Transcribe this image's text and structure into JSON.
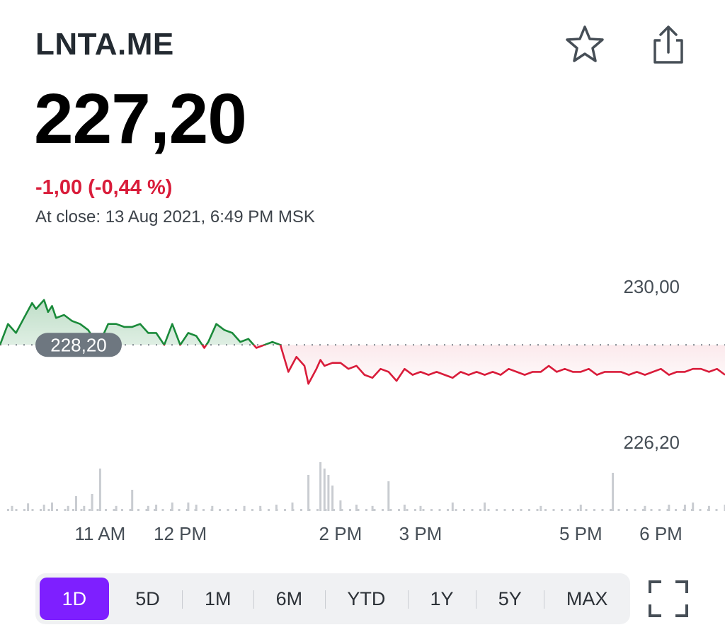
{
  "header": {
    "ticker": "LNTA.ME",
    "price": "227,20",
    "change": "-1,00 (-0,44 %)",
    "close_time": "At close: 13 Aug 2021, 6:49 PM MSK",
    "star_icon": "star-icon",
    "share_icon": "share-icon"
  },
  "colors": {
    "up": "#1a8a3a",
    "down": "#d91c3a",
    "accent": "#7e1fff",
    "volume": "#c9ccd1",
    "prev_close_badge": "#6e7780"
  },
  "chart_data": {
    "type": "line",
    "title": "",
    "y_labels": [
      "230,00",
      "226,20"
    ],
    "previous_close": 228.2,
    "previous_close_label": "228,20",
    "x_ticks": [
      "11 AM",
      "12 PM",
      "2 PM",
      "3 PM",
      "5 PM",
      "6 PM"
    ],
    "x_tick_hours": [
      11,
      12,
      14,
      15,
      17,
      18
    ],
    "x_range": [
      9.75,
      18.8
    ],
    "ylim": [
      225.3,
      230.5
    ],
    "series": [
      {
        "x": [
          9.75,
          9.85,
          9.95,
          10.05,
          10.15,
          10.2,
          10.3,
          10.35,
          10.4,
          10.45,
          10.55,
          10.65,
          10.75,
          10.85,
          10.95,
          11.05,
          11.1,
          11.2,
          11.3,
          11.4,
          11.5,
          11.6,
          11.7,
          11.8,
          11.9,
          12.0,
          12.1,
          12.2,
          12.3,
          12.35,
          12.45,
          12.55,
          12.65,
          12.75,
          12.85,
          12.95,
          13.05,
          13.15,
          13.25,
          13.35,
          13.45,
          13.55,
          13.6,
          13.7,
          13.75,
          13.8,
          13.9,
          14.0,
          14.1,
          14.2,
          14.3,
          14.4,
          14.5,
          14.6,
          14.7,
          14.8,
          14.9,
          15.0,
          15.1,
          15.2,
          15.3,
          15.4,
          15.5,
          15.6,
          15.7,
          15.8,
          15.9,
          16.0,
          16.1,
          16.2,
          16.3,
          16.4,
          16.5,
          16.6,
          16.7,
          16.8,
          16.9,
          17.0,
          17.1,
          17.2,
          17.3,
          17.4,
          17.5,
          17.6,
          17.7,
          17.8,
          17.9,
          18.0,
          18.1,
          18.2,
          18.3,
          18.4,
          18.5,
          18.6,
          18.7,
          18.8
        ],
        "y": [
          228.2,
          228.9,
          228.6,
          229.1,
          229.6,
          229.4,
          229.7,
          229.3,
          229.5,
          229.1,
          229.2,
          229.0,
          228.9,
          228.7,
          228.3,
          228.6,
          228.9,
          228.9,
          228.8,
          228.8,
          228.9,
          228.6,
          228.6,
          228.2,
          228.9,
          228.2,
          228.6,
          228.5,
          228.1,
          228.3,
          228.9,
          228.7,
          228.6,
          228.3,
          228.4,
          228.1,
          228.2,
          228.3,
          228.2,
          227.3,
          227.8,
          227.5,
          226.9,
          227.4,
          227.7,
          227.5,
          227.6,
          227.6,
          227.4,
          227.5,
          227.2,
          227.1,
          227.4,
          227.3,
          227.0,
          227.4,
          227.2,
          227.3,
          227.2,
          227.3,
          227.2,
          227.1,
          227.3,
          227.2,
          227.3,
          227.2,
          227.3,
          227.2,
          227.4,
          227.3,
          227.2,
          227.3,
          227.3,
          227.5,
          227.3,
          227.4,
          227.3,
          227.3,
          227.4,
          227.2,
          227.3,
          227.3,
          227.3,
          227.2,
          227.3,
          227.2,
          227.3,
          227.4,
          227.2,
          227.3,
          227.3,
          227.4,
          227.4,
          227.3,
          227.4,
          227.2
        ]
      }
    ],
    "volume": {
      "x": [
        9.9,
        10.1,
        10.3,
        10.4,
        10.6,
        10.7,
        10.8,
        10.9,
        11.0,
        11.2,
        11.4,
        11.6,
        11.7,
        11.9,
        12.1,
        12.2,
        12.4,
        12.8,
        13.0,
        13.2,
        13.4,
        13.6,
        13.75,
        13.8,
        13.85,
        13.9,
        14.0,
        14.2,
        14.4,
        14.6,
        14.8,
        15.0,
        15.4,
        15.8,
        16.5,
        17.0,
        17.4,
        17.8,
        18.1,
        18.3,
        18.4,
        18.6,
        18.8
      ],
      "y": [
        0.12,
        0.18,
        0.15,
        0.2,
        0.12,
        0.35,
        0.12,
        0.4,
        1.0,
        0.12,
        0.5,
        0.12,
        0.15,
        0.2,
        0.2,
        0.15,
        0.12,
        0.12,
        0.12,
        0.15,
        0.2,
        0.85,
        1.15,
        1.0,
        0.85,
        0.6,
        0.25,
        0.15,
        0.12,
        0.7,
        0.15,
        0.12,
        0.2,
        0.2,
        0.12,
        0.15,
        0.9,
        0.12,
        0.15,
        0.15,
        0.2,
        0.12,
        0.15
      ]
    }
  },
  "range_selector": {
    "buttons": [
      "1D",
      "5D",
      "1M",
      "6M",
      "YTD",
      "1Y",
      "5Y",
      "MAX"
    ],
    "active": "1D"
  },
  "expand_icon": "fullscreen-icon"
}
